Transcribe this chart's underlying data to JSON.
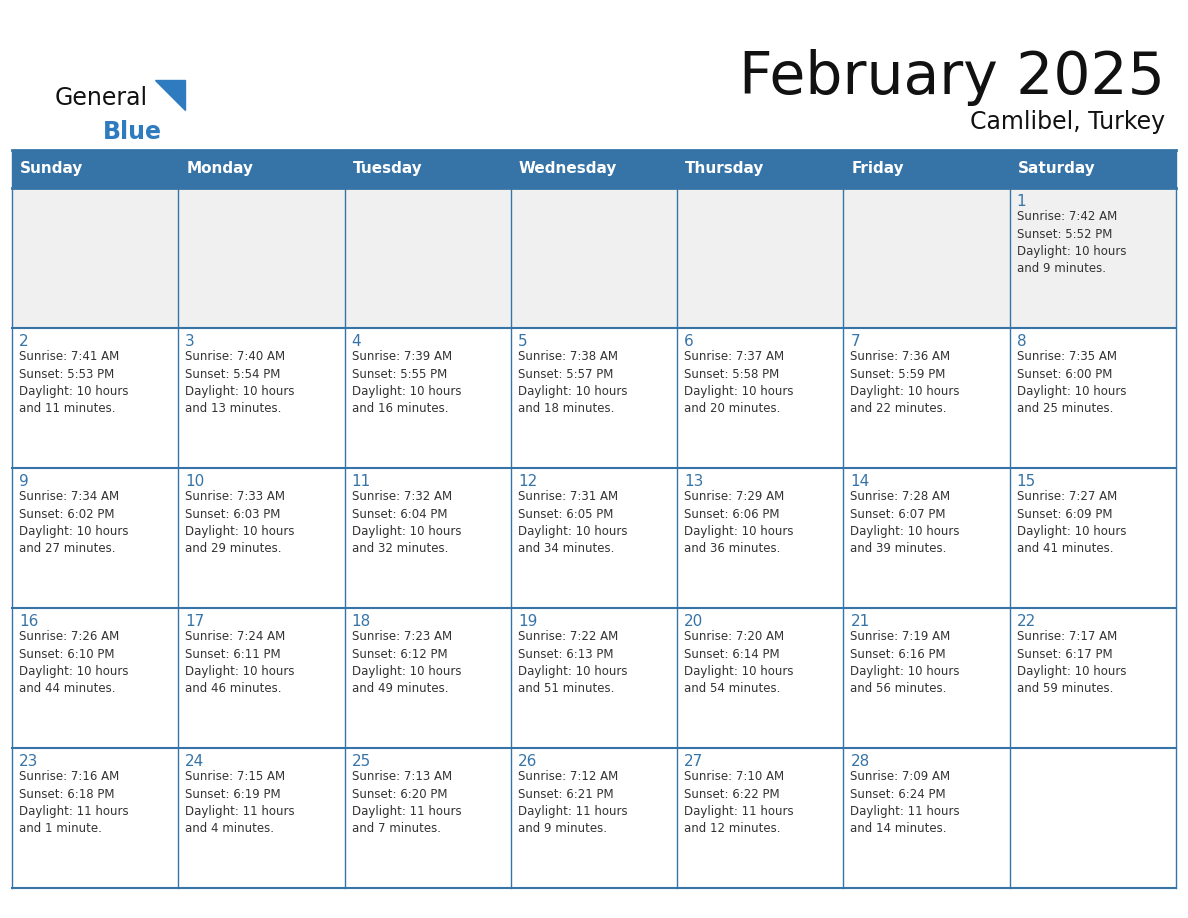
{
  "title": "February 2025",
  "subtitle": "Camlibel, Turkey",
  "header_bg": "#3674a8",
  "header_text_color": "#FFFFFF",
  "border_color": "#3674a8",
  "row_sep_color": "#3674a8",
  "day_headers": [
    "Sunday",
    "Monday",
    "Tuesday",
    "Wednesday",
    "Thursday",
    "Friday",
    "Saturday"
  ],
  "title_color": "#111111",
  "subtitle_color": "#111111",
  "day_number_color": "#3674a8",
  "info_color": "#333333",
  "logo_general_color": "#111111",
  "logo_blue_color": "#2E7BBF",
  "logo_triangle_color": "#2E7BBF",
  "week1_bg": "#f0f0f0",
  "week_bg": "#ffffff",
  "calendar_data": [
    [
      "",
      "",
      "",
      "",
      "",
      "",
      "1\nSunrise: 7:42 AM\nSunset: 5:52 PM\nDaylight: 10 hours\nand 9 minutes."
    ],
    [
      "2\nSunrise: 7:41 AM\nSunset: 5:53 PM\nDaylight: 10 hours\nand 11 minutes.",
      "3\nSunrise: 7:40 AM\nSunset: 5:54 PM\nDaylight: 10 hours\nand 13 minutes.",
      "4\nSunrise: 7:39 AM\nSunset: 5:55 PM\nDaylight: 10 hours\nand 16 minutes.",
      "5\nSunrise: 7:38 AM\nSunset: 5:57 PM\nDaylight: 10 hours\nand 18 minutes.",
      "6\nSunrise: 7:37 AM\nSunset: 5:58 PM\nDaylight: 10 hours\nand 20 minutes.",
      "7\nSunrise: 7:36 AM\nSunset: 5:59 PM\nDaylight: 10 hours\nand 22 minutes.",
      "8\nSunrise: 7:35 AM\nSunset: 6:00 PM\nDaylight: 10 hours\nand 25 minutes."
    ],
    [
      "9\nSunrise: 7:34 AM\nSunset: 6:02 PM\nDaylight: 10 hours\nand 27 minutes.",
      "10\nSunrise: 7:33 AM\nSunset: 6:03 PM\nDaylight: 10 hours\nand 29 minutes.",
      "11\nSunrise: 7:32 AM\nSunset: 6:04 PM\nDaylight: 10 hours\nand 32 minutes.",
      "12\nSunrise: 7:31 AM\nSunset: 6:05 PM\nDaylight: 10 hours\nand 34 minutes.",
      "13\nSunrise: 7:29 AM\nSunset: 6:06 PM\nDaylight: 10 hours\nand 36 minutes.",
      "14\nSunrise: 7:28 AM\nSunset: 6:07 PM\nDaylight: 10 hours\nand 39 minutes.",
      "15\nSunrise: 7:27 AM\nSunset: 6:09 PM\nDaylight: 10 hours\nand 41 minutes."
    ],
    [
      "16\nSunrise: 7:26 AM\nSunset: 6:10 PM\nDaylight: 10 hours\nand 44 minutes.",
      "17\nSunrise: 7:24 AM\nSunset: 6:11 PM\nDaylight: 10 hours\nand 46 minutes.",
      "18\nSunrise: 7:23 AM\nSunset: 6:12 PM\nDaylight: 10 hours\nand 49 minutes.",
      "19\nSunrise: 7:22 AM\nSunset: 6:13 PM\nDaylight: 10 hours\nand 51 minutes.",
      "20\nSunrise: 7:20 AM\nSunset: 6:14 PM\nDaylight: 10 hours\nand 54 minutes.",
      "21\nSunrise: 7:19 AM\nSunset: 6:16 PM\nDaylight: 10 hours\nand 56 minutes.",
      "22\nSunrise: 7:17 AM\nSunset: 6:17 PM\nDaylight: 10 hours\nand 59 minutes."
    ],
    [
      "23\nSunrise: 7:16 AM\nSunset: 6:18 PM\nDaylight: 11 hours\nand 1 minute.",
      "24\nSunrise: 7:15 AM\nSunset: 6:19 PM\nDaylight: 11 hours\nand 4 minutes.",
      "25\nSunrise: 7:13 AM\nSunset: 6:20 PM\nDaylight: 11 hours\nand 7 minutes.",
      "26\nSunrise: 7:12 AM\nSunset: 6:21 PM\nDaylight: 11 hours\nand 9 minutes.",
      "27\nSunrise: 7:10 AM\nSunset: 6:22 PM\nDaylight: 11 hours\nand 12 minutes.",
      "28\nSunrise: 7:09 AM\nSunset: 6:24 PM\nDaylight: 11 hours\nand 14 minutes.",
      ""
    ]
  ]
}
